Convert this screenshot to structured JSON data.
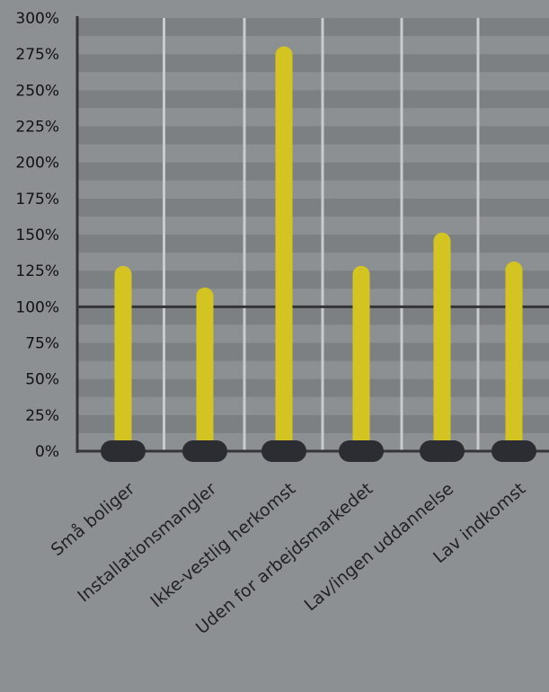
{
  "chart_data": {
    "type": "bar",
    "title": "",
    "xlabel": "",
    "ylabel": "",
    "categories": [
      "Små boliger",
      "Installationsmangler",
      "Ikke-vestlig herkomst",
      "Uden for arbejdsmarkedet",
      "Lav/ingen uddannelse",
      "Lav indkomst"
    ],
    "values": [
      128,
      113,
      280,
      128,
      151,
      131
    ],
    "ylim": [
      0,
      300
    ],
    "yticks": [
      "0%",
      "25%",
      "50%",
      "75%",
      "100%",
      "125%",
      "150%",
      "175%",
      "200%",
      "225%",
      "250%",
      "275%",
      "300%"
    ],
    "reference_line": 100,
    "grid": true,
    "colors": {
      "bar": "#d4c422",
      "base": "#2c2d33",
      "axis": "#333539",
      "band_dark": "#7d8083",
      "band_light": "#8d9093",
      "separator": "#c9cbcc"
    }
  }
}
